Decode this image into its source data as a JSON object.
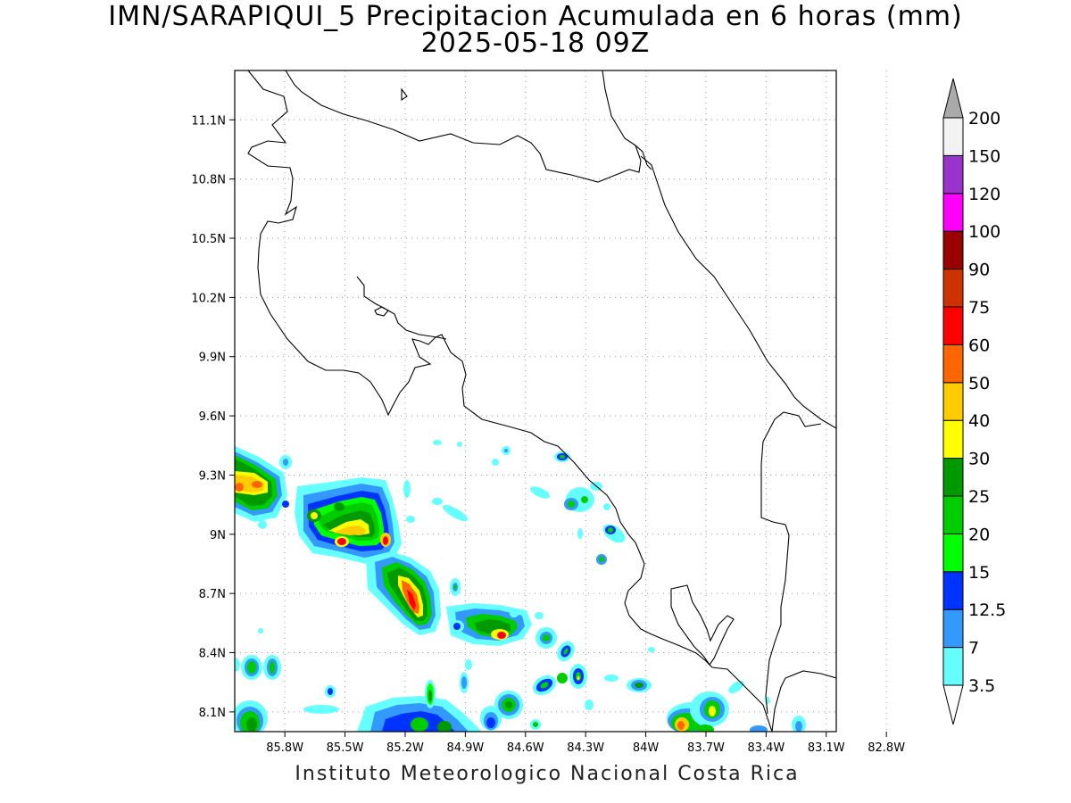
{
  "title": {
    "line1": "IMN/SARAPIQUI_5 Precipitacion Acumulada en 6 horas (mm)",
    "line2": "2025-05-18 09Z"
  },
  "footer": "Instituto Meteorologico Nacional Costa Rica",
  "map": {
    "lat_ticks": [
      "11.1N",
      "10.8N",
      "10.5N",
      "10.2N",
      "9.9N",
      "9.6N",
      "9.3N",
      "9N",
      "8.7N",
      "8.4N",
      "8.1N"
    ],
    "lon_ticks": [
      "85.8W",
      "85.5W",
      "85.2W",
      "84.9W",
      "84.6W",
      "84.3W",
      "84W",
      "83.7W",
      "83.4W",
      "83.1W",
      "82.8W"
    ],
    "lat_range": [
      8.0,
      11.35
    ],
    "lon_range": [
      86.05,
      83.05
    ],
    "gridlines": true
  },
  "colorbar": {
    "levels": [
      "3.5",
      "7",
      "12.5",
      "15",
      "20",
      "25",
      "30",
      "40",
      "50",
      "60",
      "75",
      "90",
      "100",
      "120",
      "150",
      "200"
    ],
    "colors": [
      "#66ffff",
      "#3399ff",
      "#0033ff",
      "#00ff00",
      "#00cc00",
      "#009900",
      "#ffff00",
      "#ffcc00",
      "#ff6600",
      "#ff0000",
      "#cc3300",
      "#990000",
      "#ff00ff",
      "#9933cc",
      "#f2f2f2"
    ],
    "over_color": "#aaaaaa",
    "under_color": "#ffffff"
  }
}
